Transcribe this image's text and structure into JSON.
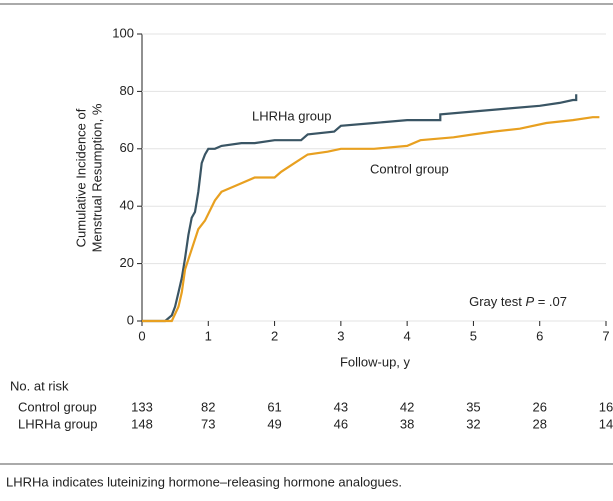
{
  "chart_data": {
    "type": "line",
    "ylabel": [
      "Cumulative Incidence of",
      "Menstrual Resumption, %"
    ],
    "xlabel": "Follow-up, y",
    "xlim": [
      0,
      7
    ],
    "xticks": [
      0,
      1,
      2,
      3,
      4,
      5,
      6,
      7
    ],
    "ylim": [
      0,
      100
    ],
    "yticks": [
      0,
      20,
      40,
      60,
      80,
      100
    ],
    "annotation": [
      "Gray test ",
      "P",
      " = .07"
    ],
    "series": [
      {
        "name": "LHRHa group",
        "color": "#3a5564",
        "x": [
          0,
          0.35,
          0.45,
          0.5,
          0.55,
          0.6,
          0.65,
          0.7,
          0.75,
          0.8,
          0.85,
          0.9,
          0.95,
          1.0,
          1.1,
          1.2,
          1.5,
          1.7,
          2.0,
          2.4,
          2.5,
          2.9,
          3.0,
          3.5,
          4.0,
          4.5,
          4.5,
          5.0,
          5.5,
          6.0,
          6.3,
          6.5,
          6.55,
          6.55
        ],
        "values": [
          0,
          0,
          2,
          5,
          10,
          15,
          22,
          30,
          36,
          38,
          45,
          55,
          58,
          60,
          60,
          61,
          62,
          62,
          63,
          63,
          65,
          66,
          68,
          69,
          70,
          70,
          72,
          73,
          74,
          75,
          76,
          77,
          77,
          79
        ]
      },
      {
        "name": "Control group",
        "color": "#e8a020",
        "x": [
          0,
          0.45,
          0.55,
          0.6,
          0.65,
          0.75,
          0.85,
          0.95,
          1.1,
          1.2,
          1.5,
          1.7,
          2.0,
          2.1,
          2.3,
          2.5,
          2.8,
          3.0,
          3.5,
          4.0,
          4.2,
          4.7,
          5.0,
          5.3,
          5.7,
          6.1,
          6.5,
          6.8,
          6.9
        ],
        "values": [
          0,
          0,
          5,
          10,
          18,
          25,
          32,
          35,
          42,
          45,
          48,
          50,
          50,
          52,
          55,
          58,
          59,
          60,
          60,
          61,
          63,
          64,
          65,
          66,
          67,
          69,
          70,
          71,
          71
        ]
      }
    ],
    "risk_table": {
      "title": "No. at risk",
      "rows": [
        {
          "name": "Control group",
          "values": [
            133,
            82,
            61,
            43,
            42,
            35,
            26,
            16
          ]
        },
        {
          "name": "LHRHa group",
          "values": [
            148,
            73,
            49,
            46,
            38,
            32,
            28,
            14
          ]
        }
      ]
    },
    "footnote": "LHRHa indicates luteinizing hormone–releasing hormone analogues."
  }
}
